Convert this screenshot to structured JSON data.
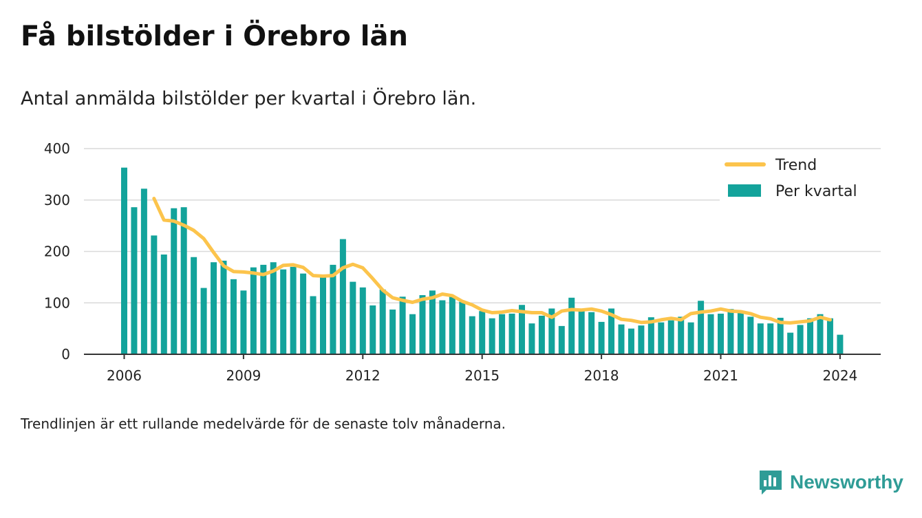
{
  "title": "Få bilstölder i Örebro län",
  "subtitle": "Antal anmälda bilstölder per kvartal i Örebro län.",
  "footnote": "Trendlinjen är ett rullande medelvärde för de senaste tolv månaderna.",
  "brand": "Newsworthy",
  "colors": {
    "bars": "#13a39b",
    "trend": "#fcc44c",
    "grid": "#d9d9d9",
    "axis": "#333333"
  },
  "chart_data": {
    "type": "bar+line",
    "title": "Få bilstölder i Örebro län",
    "ylim": [
      0,
      400
    ],
    "yticks": [
      0,
      100,
      200,
      300,
      400
    ],
    "xticks": [
      "2006",
      "2009",
      "2012",
      "2015",
      "2018",
      "2021",
      "2024"
    ],
    "x_start_year": 2006,
    "legend_placement": "top-right",
    "grid": true,
    "series": [
      {
        "name": "Per kvartal",
        "type": "bar",
        "values": [
          363,
          286,
          322,
          231,
          194,
          284,
          286,
          189,
          129,
          179,
          182,
          146,
          124,
          169,
          174,
          179,
          165,
          170,
          157,
          113,
          154,
          174,
          224,
          141,
          130,
          95,
          126,
          87,
          112,
          78,
          115,
          124,
          105,
          114,
          102,
          74,
          84,
          70,
          78,
          79,
          96,
          60,
          75,
          89,
          55,
          110,
          85,
          82,
          63,
          89,
          58,
          50,
          56,
          72,
          62,
          66,
          73,
          62,
          104,
          78,
          79,
          88,
          82,
          73,
          60,
          60,
          71,
          42,
          57,
          70,
          78,
          70,
          38
        ]
      },
      {
        "name": "Trend",
        "type": "line",
        "start_index": 3,
        "values": [
          303,
          261,
          259,
          251,
          241,
          225,
          198,
          172,
          161,
          160,
          158,
          155,
          162,
          173,
          174,
          169,
          153,
          152,
          153,
          168,
          175,
          168,
          147,
          125,
          110,
          105,
          101,
          107,
          110,
          117,
          114,
          103,
          96,
          86,
          81,
          82,
          85,
          83,
          81,
          81,
          72,
          84,
          87,
          86,
          88,
          84,
          77,
          68,
          66,
          62,
          63,
          67,
          70,
          67,
          79,
          82,
          84,
          88,
          84,
          83,
          79,
          72,
          69,
          62,
          61,
          63,
          65,
          72,
          67
        ]
      }
    ]
  }
}
